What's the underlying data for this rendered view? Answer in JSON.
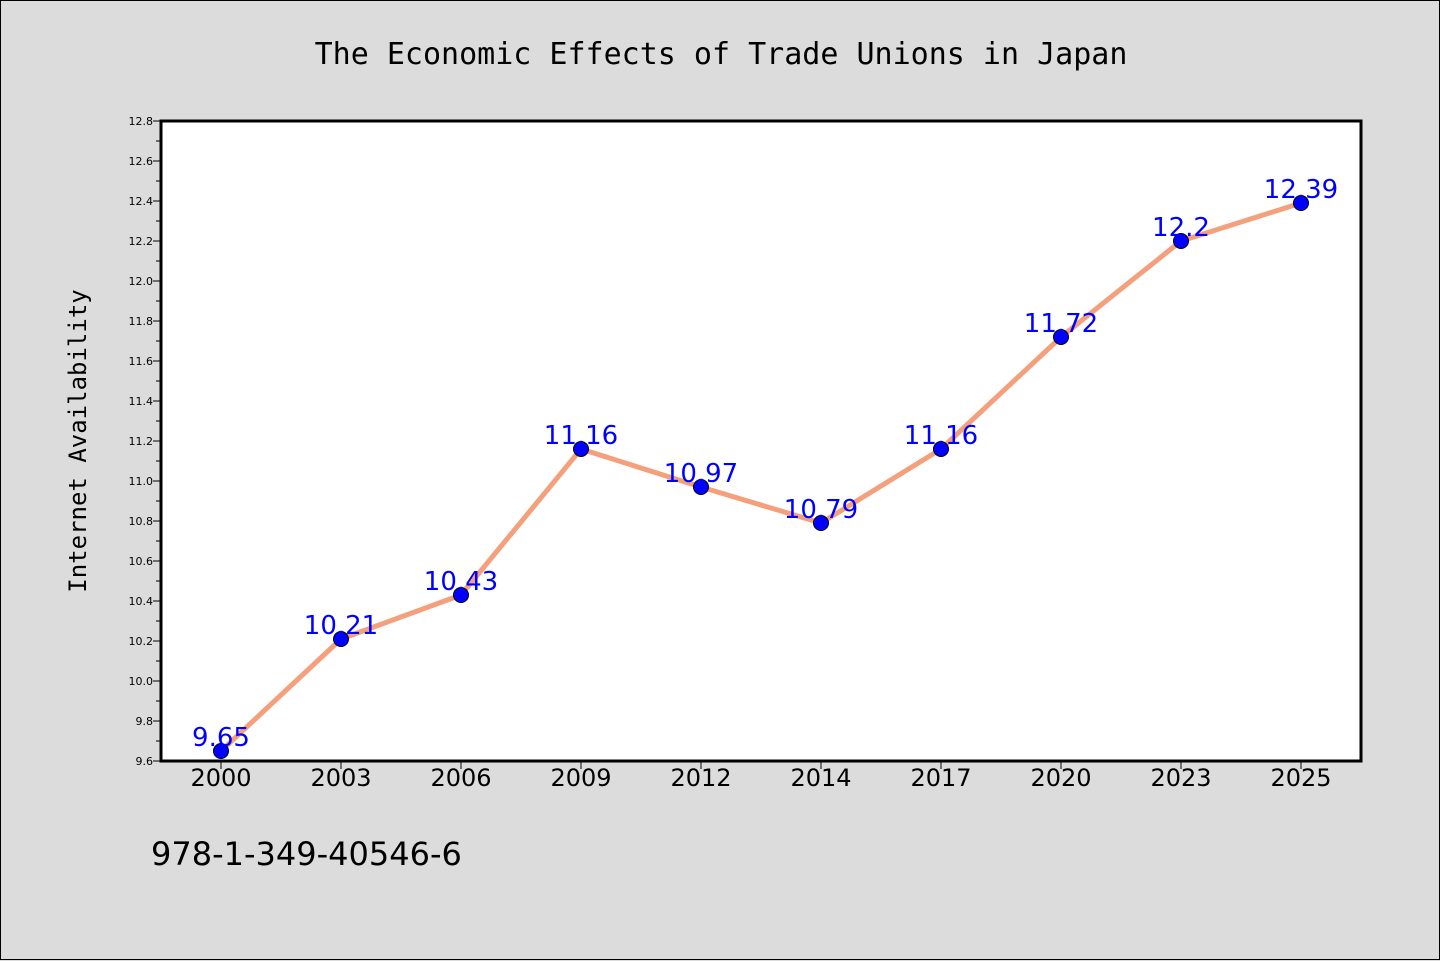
{
  "chart_data": {
    "type": "line",
    "title": "The Economic Effects of Trade Unions in Japan",
    "xlabel": "",
    "ylabel": "Internet Availability",
    "categories": [
      "2000",
      "2003",
      "2006",
      "2009",
      "2012",
      "2014",
      "2017",
      "2020",
      "2023",
      "2025"
    ],
    "series": [
      {
        "values": [
          9.65,
          10.21,
          10.43,
          11.16,
          10.97,
          10.79,
          11.16,
          11.72,
          12.2,
          12.39
        ],
        "data_labels": [
          "9.65",
          "10.21",
          "10.43",
          "11.16",
          "10.97",
          "10.79",
          "11.16",
          "11.72",
          "12.2",
          "12.39"
        ]
      }
    ],
    "ylim": [
      9.6,
      12.8
    ],
    "yticks": [
      "9.6",
      "9.8",
      "10.0",
      "10.2",
      "10.4",
      "10.6",
      "10.8",
      "11.0",
      "11.2",
      "11.4",
      "11.6",
      "11.8",
      "12.0",
      "12.2",
      "12.4",
      "12.6",
      "12.8"
    ],
    "grid": false,
    "legend": "none",
    "colors": {
      "background": "#dcdcdc",
      "plot_background": "#ffffff",
      "line": "#f4a07c",
      "marker": "#0000ff",
      "label": "#0000ff"
    }
  },
  "footer": {
    "code": "978-1-349-40546-6"
  }
}
